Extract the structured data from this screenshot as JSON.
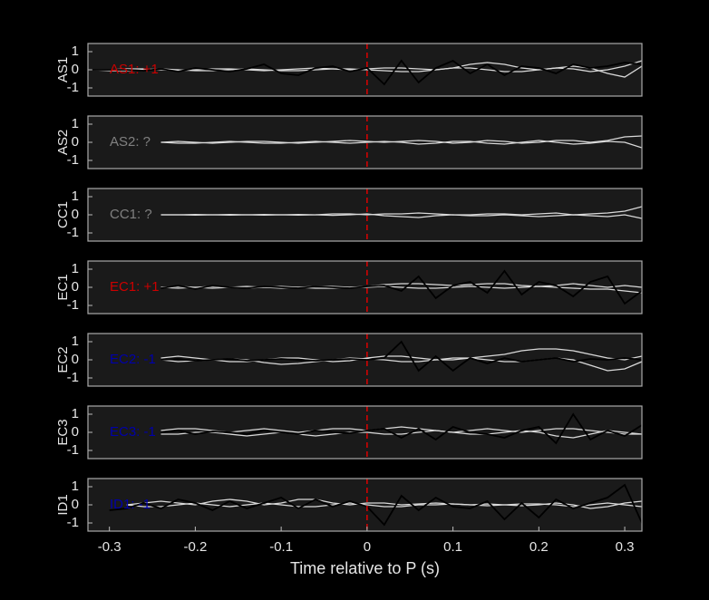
{
  "chart_data": [
    {
      "type": "line",
      "ylabel": "AS1",
      "annotation": "AS1: +1",
      "annotation_color": "#cc0000",
      "vline": 0,
      "vline_color": "#dd0000",
      "xlim": [
        -0.325,
        0.32
      ],
      "ylim": [
        -1.45,
        1.45
      ],
      "yticks": [
        1,
        0,
        -1
      ],
      "x": [
        -0.32,
        -0.3,
        -0.28,
        -0.26,
        -0.24,
        -0.22,
        -0.2,
        -0.18,
        -0.16,
        -0.14,
        -0.12,
        -0.1,
        -0.08,
        -0.06,
        -0.04,
        -0.02,
        0,
        0.02,
        0.04,
        0.06,
        0.08,
        0.1,
        0.12,
        0.14,
        0.16,
        0.18,
        0.2,
        0.22,
        0.24,
        0.26,
        0.28,
        0.3,
        0.32
      ],
      "series": [
        {
          "color": "#d9d9d9",
          "values": [
            0,
            0,
            0.05,
            0.05,
            0,
            -0.05,
            0,
            0.05,
            0.05,
            0,
            -0.05,
            0,
            0.05,
            0.1,
            0.05,
            0,
            0.05,
            0.1,
            0.1,
            0.05,
            0,
            0.1,
            0.3,
            0.4,
            0.3,
            0.1,
            0,
            0.1,
            0.2,
            0.1,
            -0.2,
            -0.4,
            0.2
          ]
        },
        {
          "color": "#d9d9d9",
          "values": [
            0,
            -0.05,
            -0.05,
            0,
            0.05,
            0,
            -0.05,
            -0.05,
            0,
            0.05,
            0,
            -0.05,
            -0.05,
            0,
            0.05,
            0.05,
            0,
            -0.05,
            -0.1,
            -0.1,
            0,
            0.1,
            0.1,
            0,
            -0.1,
            -0.1,
            0,
            0.1,
            0.05,
            -0.1,
            0,
            0.2,
            0.5
          ]
        },
        {
          "color": "#000000",
          "values": [
            0,
            0,
            0,
            -0.05,
            0.05,
            -0.1,
            0.1,
            0,
            -0.1,
            0.05,
            0.3,
            -0.2,
            -0.3,
            0.1,
            0.2,
            -0.1,
            0.1,
            -0.8,
            0.5,
            -0.7,
            0.1,
            0.5,
            -0.2,
            0.3,
            -0.3,
            0.2,
            0.1,
            -0.2,
            0.3,
            0.1,
            0.2,
            0.4,
            0.3
          ]
        }
      ]
    },
    {
      "type": "line",
      "ylabel": "AS2",
      "annotation": "AS2: ?",
      "annotation_color": "#808080",
      "vline": 0,
      "vline_color": "#dd0000",
      "xlim": [
        -0.325,
        0.32
      ],
      "ylim": [
        -1.45,
        1.45
      ],
      "yticks": [
        1,
        0,
        -1
      ],
      "x": [
        -0.32,
        -0.3,
        -0.28,
        -0.26,
        -0.24,
        -0.22,
        -0.2,
        -0.18,
        -0.16,
        -0.14,
        -0.12,
        -0.1,
        -0.08,
        -0.06,
        -0.04,
        -0.02,
        0,
        0.02,
        0.04,
        0.06,
        0.08,
        0.1,
        0.12,
        0.14,
        0.16,
        0.18,
        0.2,
        0.22,
        0.24,
        0.26,
        0.28,
        0.3,
        0.32
      ],
      "series": [
        {
          "color": "#d9d9d9",
          "values": [
            null,
            null,
            null,
            null,
            0,
            0.05,
            0,
            -0.05,
            0,
            0.05,
            0.05,
            0,
            -0.05,
            0,
            0.05,
            0.1,
            0.05,
            0,
            0.05,
            0.1,
            0.05,
            -0.05,
            0,
            0.1,
            0.05,
            -0.05,
            0,
            0.1,
            0.1,
            0,
            0.1,
            0.3,
            0.35
          ]
        },
        {
          "color": "#d9d9d9",
          "values": [
            null,
            null,
            null,
            null,
            0,
            -0.05,
            -0.05,
            0,
            0.05,
            0,
            -0.05,
            -0.05,
            0,
            0.05,
            0,
            -0.05,
            0,
            0.05,
            0,
            -0.1,
            -0.05,
            0.05,
            0.05,
            -0.05,
            -0.1,
            0,
            0.1,
            0,
            -0.1,
            -0.05,
            0.05,
            0,
            -0.3
          ]
        }
      ]
    },
    {
      "type": "line",
      "ylabel": "CC1",
      "annotation": "CC1: ?",
      "annotation_color": "#808080",
      "vline": 0,
      "vline_color": "#dd0000",
      "xlim": [
        -0.325,
        0.32
      ],
      "ylim": [
        -1.45,
        1.45
      ],
      "yticks": [
        1,
        0,
        -1
      ],
      "x": [
        -0.32,
        -0.3,
        -0.28,
        -0.26,
        -0.24,
        -0.22,
        -0.2,
        -0.18,
        -0.16,
        -0.14,
        -0.12,
        -0.1,
        -0.08,
        -0.06,
        -0.04,
        -0.02,
        0,
        0.02,
        0.04,
        0.06,
        0.08,
        0.1,
        0.12,
        0.14,
        0.16,
        0.18,
        0.2,
        0.22,
        0.24,
        0.26,
        0.28,
        0.3,
        0.32
      ],
      "series": [
        {
          "color": "#d9d9d9",
          "values": [
            null,
            null,
            null,
            null,
            0,
            0,
            0.02,
            0,
            -0.02,
            0,
            0.02,
            0,
            -0.02,
            0,
            0.05,
            0.05,
            0,
            0.05,
            0.05,
            0.1,
            0.05,
            0,
            0,
            0.05,
            0.05,
            0,
            0.05,
            0.1,
            0,
            0.05,
            0.1,
            0.2,
            0.45
          ]
        },
        {
          "color": "#d9d9d9",
          "values": [
            null,
            null,
            null,
            null,
            0,
            0,
            -0.02,
            0,
            0.02,
            0,
            -0.02,
            0,
            0.02,
            0,
            -0.03,
            0,
            0.05,
            -0.05,
            -0.1,
            -0.15,
            -0.05,
            0,
            -0.05,
            -0.05,
            0,
            -0.05,
            -0.1,
            -0.05,
            0,
            -0.05,
            -0.1,
            0,
            -0.2
          ]
        }
      ]
    },
    {
      "type": "line",
      "ylabel": "EC1",
      "annotation": "EC1: +1",
      "annotation_color": "#cc0000",
      "vline": 0,
      "vline_color": "#dd0000",
      "xlim": [
        -0.325,
        0.32
      ],
      "ylim": [
        -1.45,
        1.45
      ],
      "yticks": [
        1,
        0,
        -1
      ],
      "x": [
        -0.32,
        -0.3,
        -0.28,
        -0.26,
        -0.24,
        -0.22,
        -0.2,
        -0.18,
        -0.16,
        -0.14,
        -0.12,
        -0.1,
        -0.08,
        -0.06,
        -0.04,
        -0.02,
        0,
        0.02,
        0.04,
        0.06,
        0.08,
        0.1,
        0.12,
        0.14,
        0.16,
        0.18,
        0.2,
        0.22,
        0.24,
        0.26,
        0.28,
        0.3,
        0.32
      ],
      "series": [
        {
          "color": "#d9d9d9",
          "values": [
            null,
            null,
            null,
            null,
            0,
            0.05,
            0,
            -0.05,
            0,
            0.05,
            0,
            -0.05,
            0,
            0.05,
            0.05,
            0,
            0.05,
            0.15,
            0.2,
            0.2,
            0.15,
            0.1,
            0.15,
            0.2,
            0.2,
            0.1,
            0.05,
            0.1,
            0.2,
            0.1,
            0,
            0.1,
            0
          ]
        },
        {
          "color": "#d9d9d9",
          "values": [
            null,
            null,
            null,
            null,
            0,
            -0.05,
            0,
            0.05,
            0,
            -0.05,
            0,
            0.05,
            0,
            -0.05,
            -0.05,
            0,
            0,
            0.05,
            0,
            -0.05,
            -0.05,
            0,
            0.05,
            0,
            -0.05,
            0,
            0.05,
            0,
            -0.05,
            -0.1,
            -0.1,
            -0.2,
            -0.3
          ]
        },
        {
          "color": "#000000",
          "values": [
            null,
            null,
            null,
            null,
            -0.05,
            0.1,
            -0.1,
            0.1,
            0,
            -0.05,
            0.05,
            0,
            -0.05,
            0.05,
            0,
            -0.05,
            0.05,
            0.1,
            -0.2,
            0.6,
            -0.6,
            0.1,
            0.3,
            -0.3,
            0.9,
            -0.4,
            0.3,
            0.1,
            -0.5,
            0.3,
            0.6,
            -0.9,
            -0.2
          ]
        }
      ]
    },
    {
      "type": "line",
      "ylabel": "EC2",
      "annotation": "EC2: -1",
      "annotation_color": "#0000aa",
      "vline": 0,
      "vline_color": "#dd0000",
      "xlim": [
        -0.325,
        0.32
      ],
      "ylim": [
        -1.45,
        1.45
      ],
      "yticks": [
        1,
        0,
        -1
      ],
      "x": [
        -0.32,
        -0.3,
        -0.28,
        -0.26,
        -0.24,
        -0.22,
        -0.2,
        -0.18,
        -0.16,
        -0.14,
        -0.12,
        -0.1,
        -0.08,
        -0.06,
        -0.04,
        -0.02,
        0,
        0.02,
        0.04,
        0.06,
        0.08,
        0.1,
        0.12,
        0.14,
        0.16,
        0.18,
        0.2,
        0.22,
        0.24,
        0.26,
        0.28,
        0.3,
        0.32
      ],
      "series": [
        {
          "color": "#d9d9d9",
          "values": [
            null,
            null,
            null,
            null,
            0.1,
            0.2,
            0.1,
            0,
            -0.1,
            -0.1,
            0,
            0.1,
            0.1,
            0,
            -0.1,
            -0.05,
            0.1,
            0.2,
            0.2,
            0.1,
            0,
            0,
            0.1,
            0.2,
            0.3,
            0.5,
            0.6,
            0.6,
            0.5,
            0.3,
            0.1,
            0,
            0.2
          ]
        },
        {
          "color": "#d9d9d9",
          "values": [
            null,
            null,
            null,
            null,
            0,
            -0.1,
            -0.05,
            0,
            0.05,
            0,
            -0.15,
            -0.25,
            -0.2,
            -0.1,
            0,
            0.1,
            0.05,
            0,
            -0.1,
            -0.1,
            0,
            0.1,
            0.1,
            0,
            -0.1,
            -0.1,
            0,
            0.1,
            0,
            -0.3,
            -0.6,
            -0.5,
            -0.1
          ]
        },
        {
          "color": "#000000",
          "values": [
            null,
            null,
            null,
            null,
            0,
            0.05,
            -0.05,
            0,
            0.05,
            -0.05,
            0,
            0.05,
            0,
            -0.05,
            0,
            0.05,
            0,
            0.1,
            1.0,
            -0.6,
            0.2,
            -0.6,
            0.1,
            -0.2,
            0.1,
            -0.1,
            0,
            0.1,
            -0.1,
            0.05,
            0,
            0.1,
            0
          ]
        }
      ]
    },
    {
      "type": "line",
      "ylabel": "EC3",
      "annotation": "EC3: -1",
      "annotation_color": "#0000aa",
      "vline": 0,
      "vline_color": "#dd0000",
      "xlim": [
        -0.325,
        0.32
      ],
      "ylim": [
        -1.45,
        1.45
      ],
      "yticks": [
        1,
        0,
        -1
      ],
      "x": [
        -0.32,
        -0.3,
        -0.28,
        -0.26,
        -0.24,
        -0.22,
        -0.2,
        -0.18,
        -0.16,
        -0.14,
        -0.12,
        -0.1,
        -0.08,
        -0.06,
        -0.04,
        -0.02,
        0,
        0.02,
        0.04,
        0.06,
        0.08,
        0.1,
        0.12,
        0.14,
        0.16,
        0.18,
        0.2,
        0.22,
        0.24,
        0.26,
        0.28,
        0.3,
        0.32
      ],
      "series": [
        {
          "color": "#d9d9d9",
          "values": [
            null,
            null,
            null,
            null,
            0.1,
            0.2,
            0.2,
            0.1,
            0,
            0.1,
            0.2,
            0.1,
            0,
            0.1,
            0.2,
            0.2,
            0.1,
            0.2,
            0.3,
            0.2,
            0.1,
            0,
            0.1,
            0.2,
            0.1,
            0,
            0.1,
            0.2,
            0.2,
            0.1,
            0,
            -0.1,
            -0.1
          ]
        },
        {
          "color": "#d9d9d9",
          "values": [
            null,
            null,
            null,
            null,
            -0.1,
            -0.1,
            0,
            0,
            -0.1,
            -0.2,
            -0.1,
            0,
            -0.1,
            -0.2,
            -0.1,
            0,
            0,
            -0.1,
            -0.1,
            0,
            0.1,
            0,
            -0.1,
            -0.1,
            0,
            0.1,
            0,
            -0.2,
            -0.3,
            -0.1,
            0.1,
            0,
            -0.1
          ]
        },
        {
          "color": "#000000",
          "values": [
            null,
            null,
            null,
            null,
            0,
            0.1,
            -0.1,
            0.05,
            0,
            -0.1,
            0.1,
            0,
            -0.1,
            0.1,
            0,
            -0.05,
            0.1,
            0.2,
            -0.3,
            0.2,
            -0.4,
            0.3,
            0,
            -0.1,
            -0.3,
            0.1,
            0.3,
            -0.6,
            1.0,
            -0.4,
            0.1,
            -0.2,
            0.4
          ]
        }
      ]
    },
    {
      "type": "line",
      "ylabel": "ID1",
      "annotation": "ID1: -1",
      "annotation_color": "#0000aa",
      "vline": 0,
      "vline_color": "#dd0000",
      "xlim": [
        -0.325,
        0.32
      ],
      "ylim": [
        -1.45,
        1.45
      ],
      "yticks": [
        1,
        0,
        -1
      ],
      "xticks": [
        -0.3,
        -0.2,
        -0.1,
        0,
        0.1,
        0.2,
        0.3
      ],
      "xlabel": "Time relative to P (s)",
      "x": [
        -0.32,
        -0.3,
        -0.28,
        -0.26,
        -0.24,
        -0.22,
        -0.2,
        -0.18,
        -0.16,
        -0.14,
        -0.12,
        -0.1,
        -0.08,
        -0.06,
        -0.04,
        -0.02,
        0,
        0.02,
        0.04,
        0.06,
        0.08,
        0.1,
        0.12,
        0.14,
        0.16,
        0.18,
        0.2,
        0.22,
        0.24,
        0.26,
        0.28,
        0.3,
        0.32
      ],
      "series": [
        {
          "color": "#d9d9d9",
          "values": [
            null,
            null,
            0,
            0.1,
            0.2,
            0.1,
            0,
            0.2,
            0.3,
            0.2,
            0,
            0.1,
            0.3,
            0.3,
            0.1,
            0,
            0.1,
            0.1,
            0,
            0.05,
            0.1,
            0.05,
            0,
            0.05,
            0,
            -0.05,
            0,
            0.1,
            0,
            -0.2,
            -0.1,
            0.1,
            0.2
          ]
        },
        {
          "color": "#d9d9d9",
          "values": [
            null,
            null,
            0,
            -0.1,
            -0.1,
            0,
            0.1,
            0,
            -0.1,
            0,
            0.1,
            0,
            -0.1,
            -0.1,
            0,
            0.1,
            0,
            -0.1,
            -0.1,
            0,
            0,
            0.05,
            0,
            -0.05,
            0,
            0.05,
            0.05,
            0,
            -0.1,
            0,
            0.1,
            0,
            -0.1
          ]
        },
        {
          "color": "#000000",
          "values": [
            null,
            -0.3,
            -0.2,
            0.1,
            -0.2,
            0.3,
            0.1,
            -0.3,
            0.2,
            -0.2,
            0.1,
            0.4,
            -0.2,
            0.3,
            -0.1,
            0.2,
            -0.1,
            -1.1,
            0.5,
            -0.3,
            0.4,
            -0.1,
            -0.2,
            0.2,
            -0.8,
            0.1,
            -0.7,
            0.3,
            -0.2,
            0.1,
            0.4,
            1.1,
            -1.0
          ]
        }
      ]
    }
  ]
}
